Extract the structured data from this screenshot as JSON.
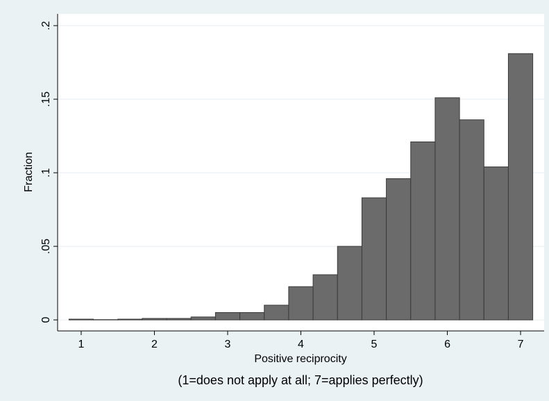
{
  "chart_data": {
    "type": "histogram",
    "ylabel": "Fraction",
    "xlabel": [
      "Positive reciprocity",
      "(1=does not apply at all; 7=applies perfectly)"
    ],
    "bins": [
      0.8333,
      1.1667,
      1.5,
      1.8333,
      2.1667,
      2.5,
      2.8333,
      3.1667,
      3.5,
      3.8333,
      4.1667,
      4.5,
      4.8333,
      5.1667,
      5.5,
      5.8333,
      6.1667,
      6.5,
      6.8333,
      7.1667
    ],
    "values": [
      0.0005,
      0.0002,
      0.0005,
      0.001,
      0.001,
      0.002,
      0.005,
      0.005,
      0.01,
      0.0226,
      0.0307,
      0.05,
      0.083,
      0.096,
      0.121,
      0.151,
      0.136,
      0.104,
      0.181
    ],
    "color": "#6b6b6b",
    "xlim": [
      0.678,
      7.322
    ],
    "ylim": [
      -0.0075,
      0.208
    ],
    "xticks": [
      1,
      2,
      3,
      4,
      5,
      6,
      7
    ],
    "yticks": [
      {
        "value": 0,
        "label": "0"
      },
      {
        "value": 0.05,
        "label": ".05"
      },
      {
        "value": 0.1,
        "label": ".1"
      },
      {
        "value": 0.15,
        "label": ".15"
      },
      {
        "value": 0.2,
        "label": ".2"
      }
    ],
    "grid": true
  }
}
